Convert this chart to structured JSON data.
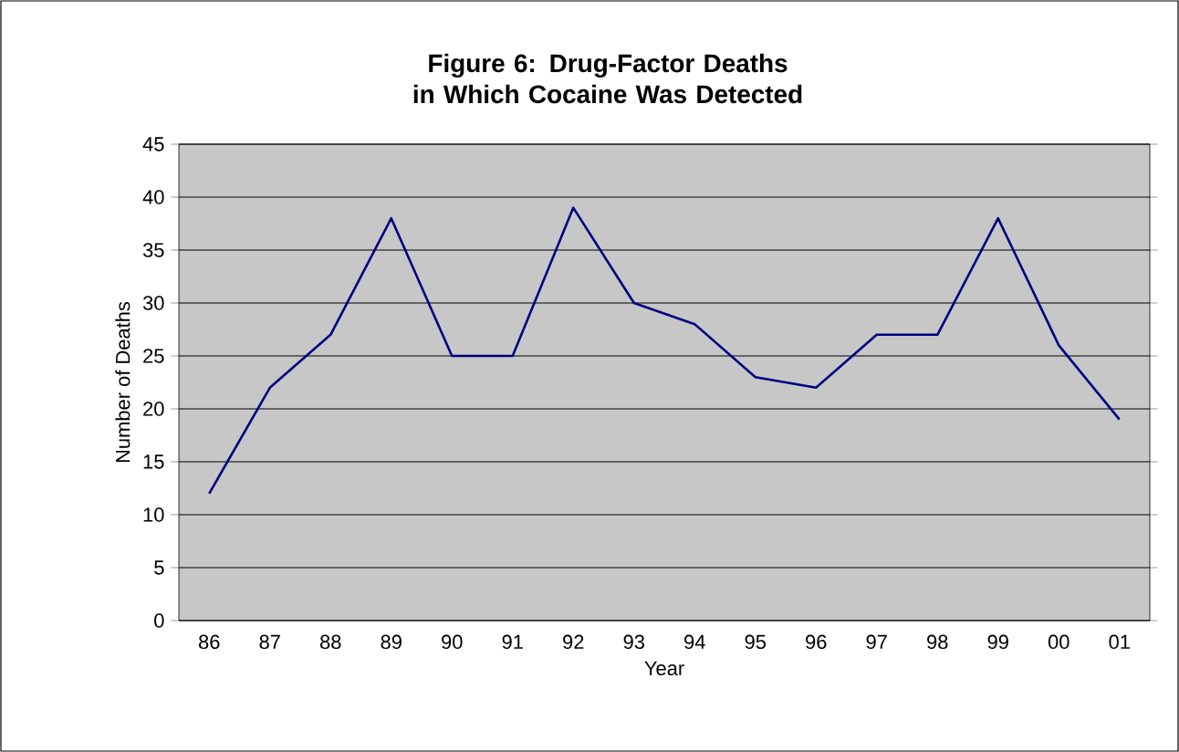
{
  "chart_data": {
    "type": "line",
    "title": "Figure 6: Drug-Factor Deaths in Which Cocaine Was Detected",
    "categories": [
      "86",
      "87",
      "88",
      "89",
      "90",
      "91",
      "92",
      "93",
      "94",
      "95",
      "96",
      "97",
      "98",
      "99",
      "00",
      "01"
    ],
    "series": [
      {
        "color": "#000080",
        "values": [
          12,
          22,
          27,
          38,
          25,
          25,
          39,
          30,
          28,
          23,
          22,
          27,
          27,
          38,
          26,
          19
        ]
      }
    ],
    "xlabel": "Year",
    "ylabel": "Number of Deaths",
    "ylim": [
      0,
      45
    ],
    "yticks": [
      0,
      5,
      10,
      15,
      20,
      25,
      30,
      35,
      40,
      45
    ],
    "grid": "y",
    "marker": "none",
    "line_style": "solid"
  }
}
